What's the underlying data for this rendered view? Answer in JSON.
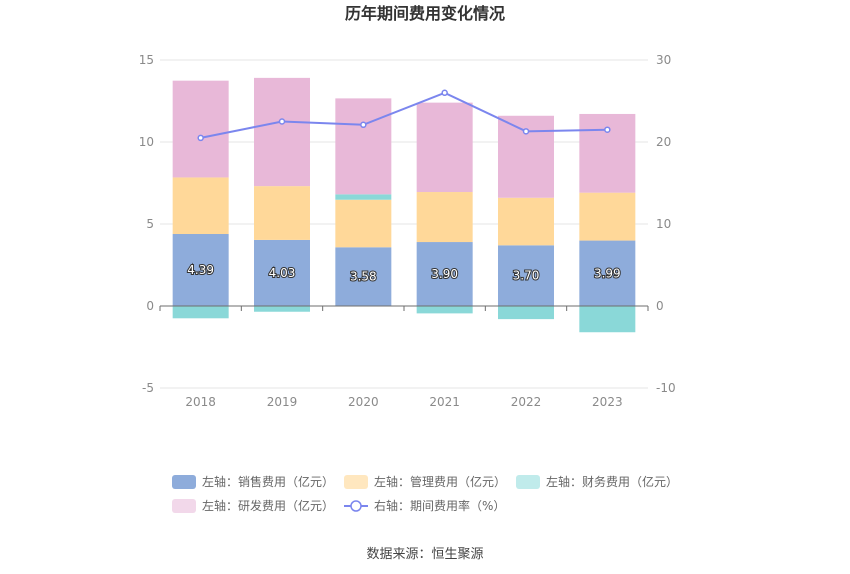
{
  "chart_data": {
    "type": "bar",
    "title": "历年期间费用变化情况",
    "categories": [
      "2018",
      "2019",
      "2020",
      "2021",
      "2022",
      "2023"
    ],
    "left_axis": {
      "ylim": [
        -5,
        15
      ],
      "ticks": [
        "-5",
        "0",
        "5",
        "10",
        "15"
      ]
    },
    "right_axis": {
      "ylim": [
        -10,
        30
      ],
      "ticks": [
        "-10",
        "0",
        "10",
        "20",
        "30"
      ]
    },
    "series": [
      {
        "name": "左轴：销售费用（亿元）",
        "axis": "left",
        "type": "bar",
        "stack": "expense",
        "color": "#8eacdb",
        "values": [
          4.39,
          4.03,
          3.58,
          3.9,
          3.7,
          3.99
        ],
        "labels": [
          "4.39",
          "4.03",
          "3.58",
          "3.90",
          "3.70",
          "3.99"
        ]
      },
      {
        "name": "左轴：管理费用（亿元）",
        "axis": "left",
        "type": "bar",
        "stack": "expense",
        "color": "#ffd899",
        "values": [
          3.45,
          3.28,
          2.9,
          3.05,
          2.9,
          2.92
        ]
      },
      {
        "name": "左轴：财务费用（亿元）",
        "axis": "left",
        "type": "bar",
        "stack": "expense",
        "color": "#8ad8d8",
        "values": [
          -0.75,
          -0.35,
          0.33,
          -0.45,
          -0.8,
          -1.6
        ]
      },
      {
        "name": "左轴：研发费用（亿元）",
        "axis": "left",
        "type": "bar",
        "stack": "expense",
        "color": "#e8b8d8",
        "values": [
          5.9,
          6.6,
          5.85,
          5.45,
          5.0,
          4.8
        ]
      },
      {
        "name": "右轴：期间费用率（%）",
        "axis": "right",
        "type": "line",
        "color": "#7b86ee",
        "values": [
          20.5,
          22.5,
          22.1,
          26.0,
          21.3,
          21.5
        ]
      }
    ],
    "legend": [
      {
        "label": "左轴：销售费用（亿元）",
        "color": "#8eacdb",
        "marker": "rect"
      },
      {
        "label": "左轴：管理费用（亿元）",
        "color": "#ffe7bf",
        "marker": "rect"
      },
      {
        "label": "左轴：财务费用（亿元）",
        "color": "#c0ebeb",
        "marker": "rect"
      },
      {
        "label": "左轴：研发费用（亿元）",
        "color": "#f2d8ea",
        "marker": "rect"
      },
      {
        "label": "右轴：期间费用率（%）",
        "color": "#7b86ee",
        "marker": "line"
      }
    ],
    "legend_position": "bottom",
    "source": "数据来源：恒生聚源"
  }
}
